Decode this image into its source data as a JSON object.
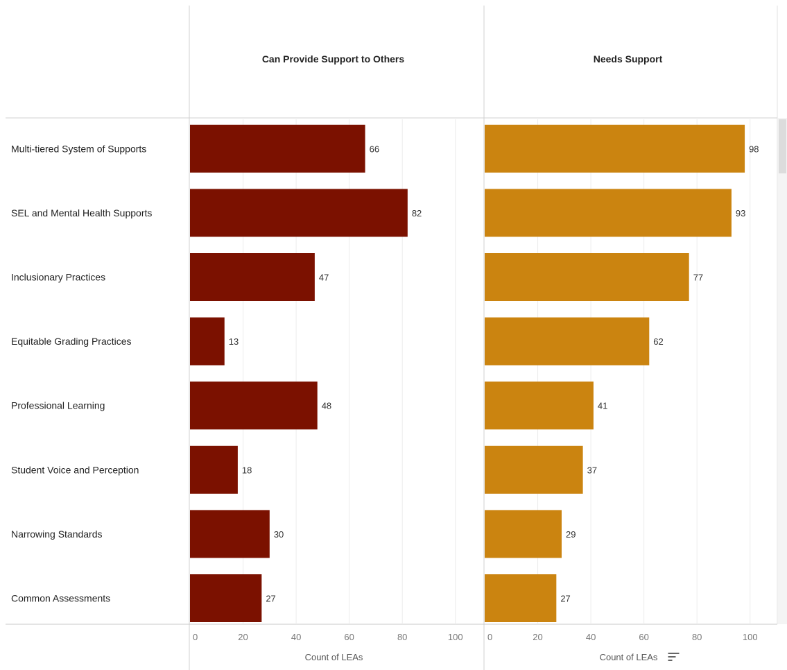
{
  "chart_data": {
    "type": "bar",
    "categories": [
      "Multi-tiered System of Supports",
      "SEL and Mental Health Supports",
      "Inclusionary Practices",
      "Equitable Grading Practices",
      "Professional Learning",
      "Student Voice and Perception",
      "Narrowing Standards",
      "Common Assessments"
    ],
    "series": [
      {
        "name": "Can Provide Support to Others",
        "values": [
          66,
          82,
          47,
          13,
          48,
          18,
          30,
          27
        ],
        "color": "#7b1100"
      },
      {
        "name": "Needs Support",
        "values": [
          98,
          93,
          77,
          62,
          41,
          37,
          29,
          27
        ],
        "color": "#cb8410"
      }
    ],
    "xlim": [
      0,
      110
    ],
    "x_ticks": [
      "0",
      "20",
      "40",
      "60",
      "80",
      "100"
    ],
    "xlabel": "Count of LEAs",
    "orientation": "horizontal",
    "grid": true,
    "sort_icon": "sort-descending-icon"
  }
}
